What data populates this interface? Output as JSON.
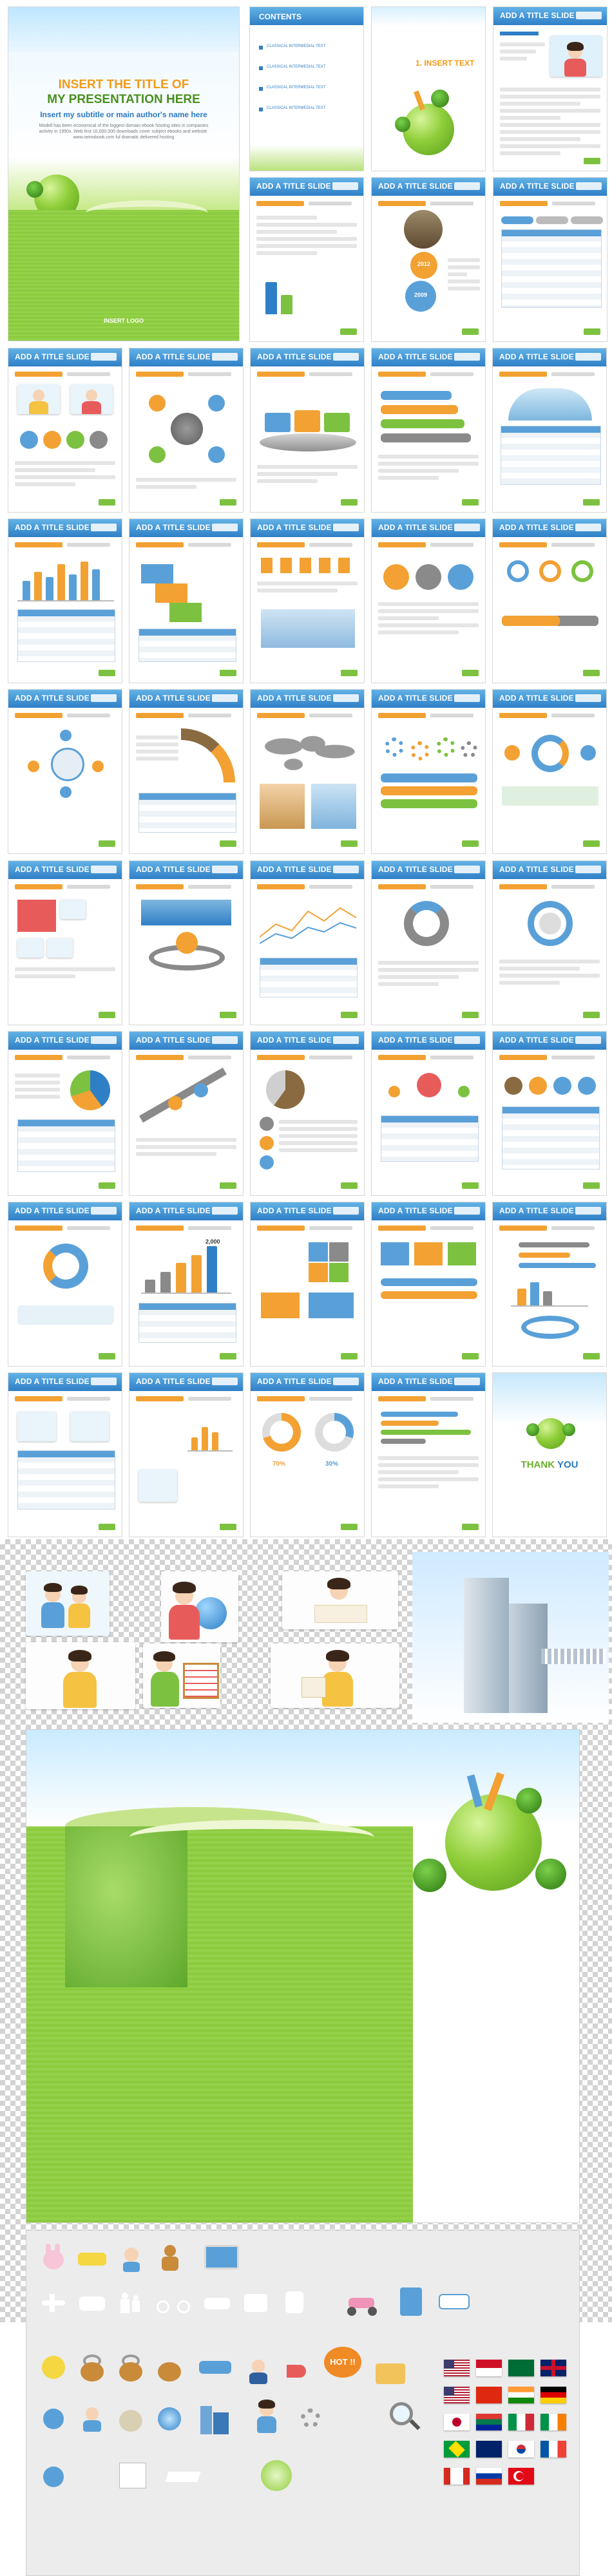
{
  "cover": {
    "title_line1": "INSERT THE TITLE OF",
    "title_line2": "MY PRESENTATION HERE",
    "subtitle": "Insert my subtitle or main author's name here",
    "body": "Modell has been economical of the biggest domain ebook hosting sites in companies activity in 1990s. Web first 10,000,000 downloads cover subject ebooks and website.  www.seinobook.com ful dramatic delivered hosting",
    "logo": "INSERT LOGO"
  },
  "contents": {
    "title": "CONTENTS",
    "items": [
      "CLASSICAL INTERMEDIAL TEXT",
      "CLASSICAL INTERMEDIAL TEXT",
      "CLASSICAL INTERMEDIAL TEXT",
      "CLASSICAL INTERMEDIAL TEXT"
    ]
  },
  "section": {
    "title": "1. INSERT TEXT"
  },
  "slide_title": "ADD A TITLE SLIDE",
  "thank_you": {
    "part1": "THANK",
    "part2": "YOU"
  },
  "colors": {
    "header_blue": "#2f7fc7",
    "accent_orange": "#f2a132",
    "accent_green": "#7cc240",
    "light_gray": "#e5e5e5"
  },
  "slide_labels": [
    "ADD A TITLE SLIDE",
    "ADD A TITLE SLIDE",
    "ADD A TITLE SLIDE",
    "ADD A TITLE SLIDE",
    "ADD A TITLE SLIDE",
    "ADD A TITLE SLIDE",
    "ADD A TITLE SLIDE",
    "ADD A TITLE SLIDE",
    "ADD A TITLE SLIDE",
    "ADD A TITLE SLIDE",
    "ADD A TITLE SLIDE",
    "ADD A TITLE SLIDE",
    "ADD A TITLE SLIDE",
    "ADD A TITLE SLIDE",
    "ADD A TITLE SLIDE",
    "ADD A TITLE SLIDE",
    "ADD A TITLE SLIDE",
    "ADD A TITLE SLIDE",
    "ADD A TITLE SLIDE",
    "ADD A TITLE SLIDE",
    "ADD A TITLE SLIDE",
    "ADD A TITLE SLIDE",
    "ADD A TITLE SLIDE",
    "ADD A TITLE SLIDE",
    "ADD A TITLE SLIDE",
    "ADD A TITLE SLIDE",
    "ADD A TITLE SLIDE",
    "ADD A TITLE SLIDE",
    "ADD A TITLE SLIDE",
    "ADD A TITLE SLIDE",
    "ADD A TITLE SLIDE",
    "ADD A TITLE SLIDE",
    "ADD A TITLE SLIDE",
    "ADD A TITLE SLIDE",
    "ADD A TITLE SLIDE",
    "ADD A TITLE SLIDE",
    "ADD A TITLE SLIDE",
    "ADD A TITLE SLIDE",
    "ADD A TITLE SLIDE",
    "ADD A TITLE SLIDE",
    "ADD A TITLE SLIDE",
    "ADD A TITLE SLIDE",
    "ADD A TITLE SLIDE"
  ],
  "chart_labels": {
    "year_a": "2012",
    "year_b": "2009",
    "big_value": "2,000",
    "pct_a": "70%",
    "pct_b": "30%"
  },
  "icons": [
    "bunny-icon",
    "boy-icon",
    "gingerbread-icon",
    "computer-icon",
    "mobile-phone-icon",
    "cake-icon",
    "airplane-icon",
    "train-icon",
    "family-icon",
    "bicycle-icon",
    "car-icon",
    "bus-icon",
    "subway-icon",
    "scooter-icon",
    "building-icon",
    "weather-icon",
    "coin-icon",
    "padlock-icon",
    "padlock-icon",
    "unlock-icon",
    "battery-icon",
    "ruler-icon",
    "businessman-icon",
    "hot-badge-icon",
    "folder-icon",
    "gears-icon",
    "messenger-icon",
    "user-icon",
    "money-bag-icon",
    "city-icon",
    "document-icon",
    "girl-icon",
    "nature-icon",
    "magnifier-icon",
    "email-icon",
    "card-icon",
    "plane-paper-icon"
  ],
  "hot_label": "HOT !!",
  "flags": [
    "usa",
    "indonesia",
    "saudi-arabia",
    "uk",
    "usa",
    "china",
    "india",
    "germany",
    "japan",
    "south-africa",
    "italy",
    "brazil",
    "australia",
    "korea",
    "france",
    "canada",
    "russia",
    "turkey"
  ]
}
